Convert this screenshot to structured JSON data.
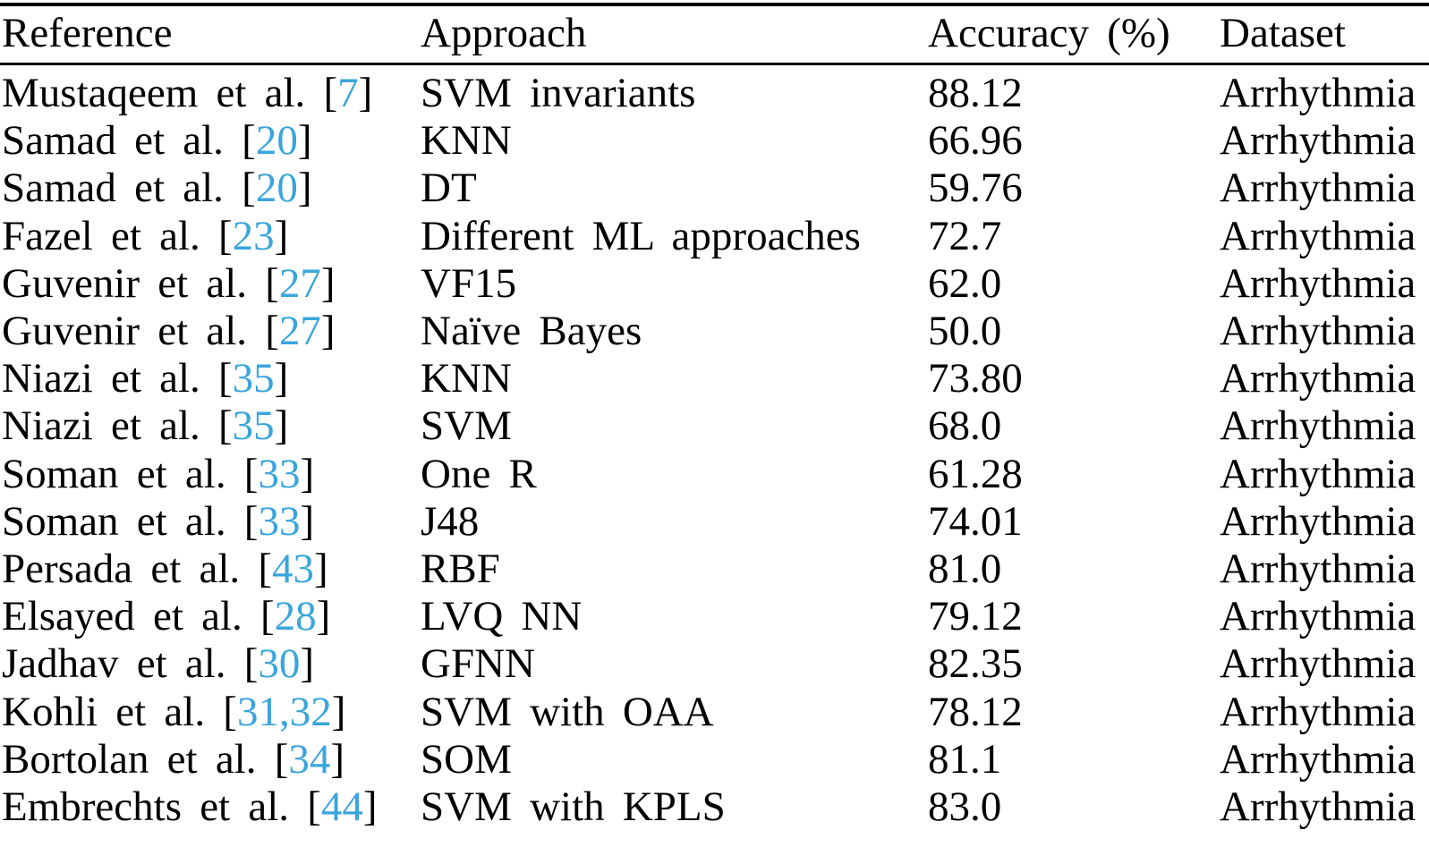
{
  "table": {
    "columns": [
      {
        "id": "reference",
        "label": "Reference"
      },
      {
        "id": "approach",
        "label": "Approach"
      },
      {
        "id": "accuracy",
        "label": "Accuracy (%)"
      },
      {
        "id": "dataset",
        "label": "Dataset"
      }
    ],
    "citation_bracket_open": "[",
    "citation_bracket_close": "]",
    "colors": {
      "text": "#000000",
      "citation": "#3AA5DC",
      "rule": "#000000",
      "background": "#ffffff"
    },
    "rows": [
      {
        "reference": "Mustaqeem et al.",
        "citation": "7",
        "approach": "SVM invariants",
        "accuracy": "88.12",
        "dataset": "Arrhythmia"
      },
      {
        "reference": "Samad et al.",
        "citation": "20",
        "approach": "KNN",
        "accuracy": "66.96",
        "dataset": "Arrhythmia"
      },
      {
        "reference": "Samad et al.",
        "citation": "20",
        "approach": "DT",
        "accuracy": "59.76",
        "dataset": "Arrhythmia"
      },
      {
        "reference": "Fazel et al.",
        "citation": "23",
        "approach": "Different ML approaches",
        "accuracy": "72.7",
        "dataset": "Arrhythmia"
      },
      {
        "reference": "Guvenir et al.",
        "citation": "27",
        "approach": "VF15",
        "accuracy": "62.0",
        "dataset": "Arrhythmia"
      },
      {
        "reference": "Guvenir et al.",
        "citation": "27",
        "approach": "Naïve Bayes",
        "accuracy": "50.0",
        "dataset": "Arrhythmia"
      },
      {
        "reference": "Niazi et al.",
        "citation": "35",
        "approach": "KNN",
        "accuracy": "73.80",
        "dataset": "Arrhythmia"
      },
      {
        "reference": "Niazi et al.",
        "citation": "35",
        "approach": "SVM",
        "accuracy": "68.0",
        "dataset": "Arrhythmia"
      },
      {
        "reference": "Soman et al.",
        "citation": "33",
        "approach": "One R",
        "accuracy": "61.28",
        "dataset": "Arrhythmia"
      },
      {
        "reference": "Soman et al.",
        "citation": "33",
        "approach": "J48",
        "accuracy": "74.01",
        "dataset": "Arrhythmia"
      },
      {
        "reference": "Persada et al.",
        "citation": "43",
        "approach": "RBF",
        "accuracy": "81.0",
        "dataset": "Arrhythmia"
      },
      {
        "reference": "Elsayed et al.",
        "citation": "28",
        "approach": "LVQ NN",
        "accuracy": "79.12",
        "dataset": "Arrhythmia"
      },
      {
        "reference": "Jadhav et al.",
        "citation": "30",
        "approach": "GFNN",
        "accuracy": "82.35",
        "dataset": "Arrhythmia"
      },
      {
        "reference": "Kohli et al.",
        "citation": "31,32",
        "approach": "SVM with OAA",
        "accuracy": "78.12",
        "dataset": "Arrhythmia"
      },
      {
        "reference": "Bortolan et al.",
        "citation": "34",
        "approach": "SOM",
        "accuracy": "81.1",
        "dataset": "Arrhythmia"
      },
      {
        "reference": "Embrechts et al.",
        "citation": "44",
        "approach": "SVM with KPLS",
        "accuracy": "83.0",
        "dataset": "Arrhythmia"
      }
    ]
  }
}
